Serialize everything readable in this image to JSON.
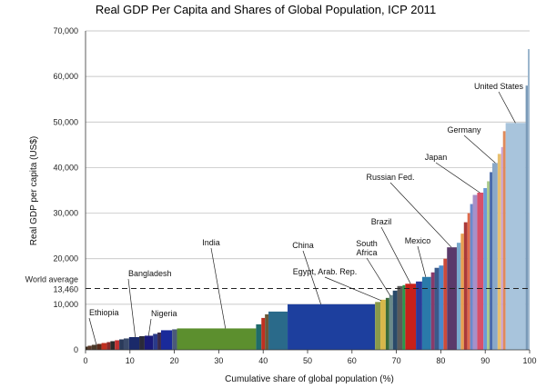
{
  "chart_data": {
    "type": "bar",
    "subtype": "variable-width",
    "title": "Real GDP Per Capita and Shares of Global Population, ICP 2011",
    "xlabel": "Cumulative share of global population (%)",
    "ylabel": "Real GDP per capita (US$)",
    "xlim": [
      0,
      100
    ],
    "ylim": [
      0,
      70000
    ],
    "x_ticks": [
      0,
      10,
      20,
      30,
      40,
      50,
      60,
      70,
      80,
      90,
      100
    ],
    "y_ticks": [
      0,
      10000,
      20000,
      30000,
      40000,
      50000,
      60000,
      70000
    ],
    "y_tick_labels": [
      "0",
      "10,000",
      "20,000",
      "30,000",
      "40,000",
      "50,000",
      "60,000",
      "70,000"
    ],
    "grid": "horizontal",
    "reference_line": {
      "label": "World average",
      "value_label": "13,460",
      "value": 13460,
      "style": "dashed"
    },
    "bars": [
      {
        "x0": 0,
        "x1": 0.5,
        "value": 700,
        "color": "#3a2a1a"
      },
      {
        "x0": 0.5,
        "x1": 1.4,
        "value": 900,
        "color": "#5a3a2a"
      },
      {
        "x0": 1.4,
        "x1": 2.6,
        "value": 1100,
        "color": "#4a3a2a"
      },
      {
        "x0": 2.6,
        "x1": 3.6,
        "value": 1300,
        "color": "#5a2a1a"
      },
      {
        "x0": 3.6,
        "x1": 4.8,
        "value": 1500,
        "color": "#c03020"
      },
      {
        "x0": 4.8,
        "x1": 5.6,
        "value": 1700,
        "color": "#8a2a2a"
      },
      {
        "x0": 5.6,
        "x1": 6.6,
        "value": 1900,
        "color": "#2a2a2a"
      },
      {
        "x0": 6.6,
        "x1": 7.6,
        "value": 2100,
        "color": "#c03030"
      },
      {
        "x0": 7.6,
        "x1": 8.6,
        "value": 2300,
        "color": "#2a3a5a"
      },
      {
        "x0": 8.6,
        "x1": 9.8,
        "value": 2500,
        "color": "#3a4a6a"
      },
      {
        "x0": 9.8,
        "x1": 12.1,
        "value": 2800,
        "color": "#1a2a6a"
      },
      {
        "x0": 12.1,
        "x1": 13.3,
        "value": 3000,
        "color": "#2a2a3a"
      },
      {
        "x0": 13.3,
        "x1": 15.2,
        "value": 3100,
        "color": "#1a1a7a"
      },
      {
        "x0": 15.2,
        "x1": 16.2,
        "value": 3500,
        "color": "#2a3a8a"
      },
      {
        "x0": 16.2,
        "x1": 17.0,
        "value": 3800,
        "color": "#3a2a4a"
      },
      {
        "x0": 17.0,
        "x1": 19.5,
        "value": 4300,
        "color": "#1a2a9a"
      },
      {
        "x0": 19.5,
        "x1": 20.6,
        "value": 4500,
        "color": "#4a5a7a"
      },
      {
        "x0": 20.6,
        "x1": 38.4,
        "value": 4700,
        "color": "#5c8f2e"
      },
      {
        "x0": 38.4,
        "x1": 39.6,
        "value": 5600,
        "color": "#1f6b6b"
      },
      {
        "x0": 39.6,
        "x1": 40.4,
        "value": 7000,
        "color": "#c03020"
      },
      {
        "x0": 40.4,
        "x1": 41.2,
        "value": 7800,
        "color": "#6a5a3a"
      },
      {
        "x0": 41.2,
        "x1": 45.5,
        "value": 8400,
        "color": "#2a6a8a"
      },
      {
        "x0": 45.5,
        "x1": 65.2,
        "value": 10000,
        "color": "#1d3f9e"
      },
      {
        "x0": 65.2,
        "x1": 66.4,
        "value": 10500,
        "color": "#8a9a4a"
      },
      {
        "x0": 66.4,
        "x1": 67.6,
        "value": 11000,
        "color": "#d8b84a"
      },
      {
        "x0": 67.6,
        "x1": 68.4,
        "value": 11400,
        "color": "#3a6a3a"
      },
      {
        "x0": 68.4,
        "x1": 69.2,
        "value": 12000,
        "color": "#6a8a8a"
      },
      {
        "x0": 69.2,
        "x1": 70.2,
        "value": 13000,
        "color": "#2a4a6a"
      },
      {
        "x0": 70.2,
        "x1": 71.4,
        "value": 14000,
        "color": "#5a5a5a"
      },
      {
        "x0": 71.4,
        "x1": 72.0,
        "value": 14200,
        "color": "#2a9a4a"
      },
      {
        "x0": 72.0,
        "x1": 74.4,
        "value": 14500,
        "color": "#c8201a"
      },
      {
        "x0": 74.4,
        "x1": 75.8,
        "value": 15000,
        "color": "#2a3a9a"
      },
      {
        "x0": 75.8,
        "x1": 77.8,
        "value": 16000,
        "color": "#2a7aaa"
      },
      {
        "x0": 77.8,
        "x1": 78.6,
        "value": 17000,
        "color": "#8a3a6a"
      },
      {
        "x0": 78.6,
        "x1": 79.6,
        "value": 18000,
        "color": "#3a5a8a"
      },
      {
        "x0": 79.6,
        "x1": 80.6,
        "value": 18500,
        "color": "#4a8acc"
      },
      {
        "x0": 80.6,
        "x1": 81.4,
        "value": 20000,
        "color": "#cc4a3a"
      },
      {
        "x0": 81.4,
        "x1": 83.6,
        "value": 22500,
        "color": "#5a3a6a"
      },
      {
        "x0": 83.6,
        "x1": 84.5,
        "value": 23500,
        "color": "#7aaacc"
      },
      {
        "x0": 84.5,
        "x1": 85.2,
        "value": 25500,
        "color": "#e8a050"
      },
      {
        "x0": 85.2,
        "x1": 86.0,
        "value": 28000,
        "color": "#aa3a3a"
      },
      {
        "x0": 86.0,
        "x1": 86.6,
        "value": 30000,
        "color": "#e06a4a"
      },
      {
        "x0": 86.6,
        "x1": 87.2,
        "value": 32000,
        "color": "#6a8acc"
      },
      {
        "x0": 87.2,
        "x1": 88.2,
        "value": 34000,
        "color": "#a890c8"
      },
      {
        "x0": 88.2,
        "x1": 89.6,
        "value": 34500,
        "color": "#d8506a"
      },
      {
        "x0": 89.6,
        "x1": 90.4,
        "value": 35500,
        "color": "#6a9ad8"
      },
      {
        "x0": 90.4,
        "x1": 91.0,
        "value": 37000,
        "color": "#a8c88a"
      },
      {
        "x0": 91.0,
        "x1": 91.6,
        "value": 39000,
        "color": "#4a6aaa"
      },
      {
        "x0": 91.6,
        "x1": 92.8,
        "value": 41000,
        "color": "#8aa8c8"
      },
      {
        "x0": 92.8,
        "x1": 93.6,
        "value": 43000,
        "color": "#e8c070"
      },
      {
        "x0": 93.6,
        "x1": 94.0,
        "value": 44500,
        "color": "#c8a0d8"
      },
      {
        "x0": 94.0,
        "x1": 94.6,
        "value": 48000,
        "color": "#e08a5a"
      },
      {
        "x0": 94.6,
        "x1": 99.1,
        "value": 49800,
        "color": "#a8c4dc"
      },
      {
        "x0": 99.1,
        "x1": 99.6,
        "value": 58000,
        "color": "#7a9ab8"
      },
      {
        "x0": 99.6,
        "x1": 100,
        "value": 66000,
        "color": "#9ab4cc"
      }
    ],
    "annotations": [
      {
        "label": "Ethiopia",
        "x": 2.5,
        "y": 900
      },
      {
        "label": "Bangladesh",
        "x": 11.2,
        "y": 2800
      },
      {
        "label": "Nigeria",
        "x": 14.2,
        "y": 3100
      },
      {
        "label": "India",
        "x": 31.5,
        "y": 4700
      },
      {
        "label": "China",
        "x": 53.0,
        "y": 10000
      },
      {
        "label": "Egypt, Arab. Rep.",
        "x": 66.6,
        "y": 10800
      },
      {
        "label": "South Africa",
        "x": 68.6,
        "y": 11900
      },
      {
        "label": "Brazil",
        "x": 73.2,
        "y": 14500
      },
      {
        "label": "Mexico",
        "x": 76.6,
        "y": 16000
      },
      {
        "label": "Russian Fed.",
        "x": 82.4,
        "y": 22500
      },
      {
        "label": "Japan",
        "x": 88.8,
        "y": 34500
      },
      {
        "label": "Germany",
        "x": 92.3,
        "y": 41000
      },
      {
        "label": "United States",
        "x": 96.8,
        "y": 49800
      }
    ],
    "annotation_text": {
      "Ethiopia": [
        "Ethiopia"
      ],
      "Bangladesh": [
        "Bangladesh"
      ],
      "Nigeria": [
        "Nigeria"
      ],
      "India": [
        "India"
      ],
      "China": [
        "China"
      ],
      "Egypt, Arab. Rep.": [
        "Egypt, Arab. Rep."
      ],
      "South Africa": [
        "South",
        "Africa"
      ],
      "Brazil": [
        "Brazil"
      ],
      "Mexico": [
        "Mexico"
      ],
      "Russian Fed.": [
        "Russian Fed."
      ],
      "Japan": [
        "Japan"
      ],
      "Germany": [
        "Germany"
      ],
      "United States": [
        "United States"
      ]
    }
  }
}
